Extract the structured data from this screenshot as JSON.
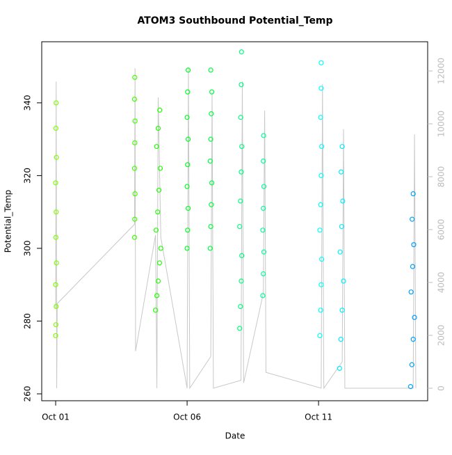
{
  "chart_data": {
    "type": "scatter",
    "title": "ATOM3 Southbound Potential_Temp",
    "x_label": "Date",
    "y_label": "Potential_Temp",
    "xlim": [
      -0.53,
      14.15
    ],
    "xticks": [
      {
        "value": 0,
        "label": "Oct 01"
      },
      {
        "value": 5,
        "label": "Oct 06"
      },
      {
        "value": 10,
        "label": "Oct 11"
      }
    ],
    "ylim": [
      258.1,
      356.8
    ],
    "yticks": [
      260,
      280,
      300,
      320,
      340
    ],
    "y2lim": [
      -474,
      13105
    ],
    "y2ticks": [
      0,
      2000,
      4000,
      6000,
      8000,
      10000,
      12000
    ],
    "series": [
      {
        "color": "#7fff00",
        "x": [
          0,
          0.01,
          0.02,
          0.0,
          0.03,
          0.01,
          0.02,
          0.0,
          0.03,
          0.01,
          0.02
        ],
        "values": [
          276,
          279,
          284,
          290,
          296,
          303,
          310,
          318,
          325,
          333,
          340
        ]
      },
      {
        "color": "#40ff00",
        "x": [
          3.0,
          3.01,
          3.02,
          3.0,
          3.01,
          3.02,
          3.0,
          3.01
        ],
        "values": [
          303,
          308,
          315,
          322,
          329,
          335,
          341,
          347
        ]
      },
      {
        "color": "#20ff00",
        "x": [
          3.8,
          3.85,
          3.9,
          3.95,
          4.0,
          3.82,
          3.88,
          3.93,
          3.98,
          3.84,
          3.9,
          3.96
        ],
        "values": [
          283,
          287,
          291,
          296,
          300,
          305,
          310,
          316,
          322,
          328,
          333,
          338
        ]
      },
      {
        "color": "#00ff20",
        "x": [
          5.0,
          5.02,
          5.04,
          5.0,
          5.02,
          5.04,
          5.0,
          5.02,
          5.04
        ],
        "values": [
          300,
          305,
          311,
          317,
          323,
          330,
          336,
          343,
          349
        ]
      },
      {
        "color": "#00ff40",
        "x": [
          5.88,
          5.9,
          5.92,
          5.94,
          5.88,
          5.9,
          5.92,
          5.94,
          5.9
        ],
        "values": [
          300,
          306,
          312,
          318,
          324,
          330,
          337,
          343,
          349
        ]
      },
      {
        "color": "#00ff80",
        "x": [
          7.0,
          7.03,
          7.06,
          7.08,
          7.0,
          7.03,
          7.06,
          7.08,
          7.04,
          7.06,
          7.07
        ],
        "values": [
          278,
          284,
          291,
          298,
          306,
          313,
          321,
          328,
          336,
          345,
          354
        ]
      },
      {
        "color": "#00ff9a",
        "x": [
          7.88,
          7.9,
          7.92,
          7.88,
          7.9,
          7.92,
          7.9,
          7.91
        ],
        "values": [
          287,
          293,
          299,
          305,
          311,
          317,
          324,
          331
        ]
      },
      {
        "color": "#00ffff",
        "x": [
          10.05,
          10.08,
          10.1,
          10.12,
          10.05,
          10.08,
          10.1,
          10.12,
          10.08,
          10.1,
          10.1
        ],
        "values": [
          276,
          283,
          290,
          297,
          305,
          312,
          320,
          328,
          336,
          344,
          351
        ]
      },
      {
        "color": "#00f0ff",
        "x": [
          10.8,
          10.85,
          10.9,
          10.95,
          10.82,
          10.88,
          10.92,
          10.86,
          10.9
        ],
        "values": [
          267,
          275,
          283,
          291,
          299,
          306,
          313,
          321,
          328
        ]
      },
      {
        "color": "#00a0ff",
        "x": [
          13.5,
          13.55,
          13.6,
          13.65,
          13.52,
          13.58,
          13.62,
          13.56,
          13.6
        ],
        "values": [
          262,
          268,
          275,
          281,
          288,
          295,
          301,
          308,
          315
        ]
      }
    ],
    "altitude": {
      "color": "#c8c8c8",
      "axis": "y2",
      "x": [
        0,
        0.02,
        0.04,
        0.06,
        3.0,
        3.02,
        3.04,
        3.8,
        3.85,
        3.9,
        4.0,
        5.0,
        5.05,
        5.1,
        5.9,
        5.95,
        6.0,
        7.05,
        7.1,
        7.15,
        7.9,
        7.95,
        8.0,
        10.1,
        10.15,
        10.2,
        10.9,
        10.95,
        11.0,
        13.6,
        13.65,
        13.7
      ],
      "values": [
        3000,
        11600,
        0,
        3200,
        6200,
        12100,
        1400,
        5800,
        0,
        11000,
        5700,
        0,
        12100,
        0,
        1200,
        11200,
        0,
        300,
        11600,
        200,
        3600,
        10500,
        600,
        0,
        11500,
        0,
        1000,
        9800,
        0,
        0,
        9600,
        0
      ]
    }
  }
}
